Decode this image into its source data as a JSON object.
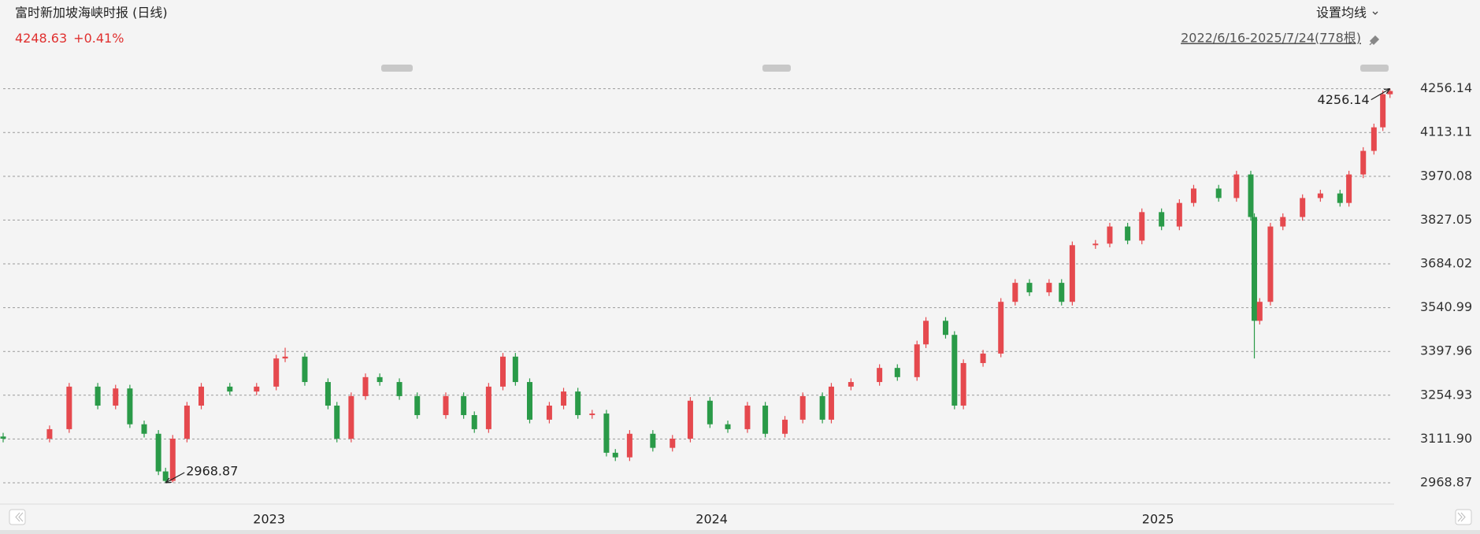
{
  "header": {
    "title": "富时新加坡海峡时报 (日线)",
    "last": 4248.63,
    "change": {
      "value": 0.41,
      "label": "+0.41%"
    },
    "ma_button": "设置均线",
    "range": "2022/6/16-2025/7/24(778根)"
  },
  "chart_data": {
    "type": "candlestick",
    "x": [
      0,
      26,
      37,
      53,
      63,
      71,
      79,
      87,
      91,
      95,
      103,
      111,
      127,
      142,
      153,
      158,
      169,
      182,
      187,
      195,
      203,
      211,
      222,
      232,
      248,
      258,
      264,
      272,
      280,
      287,
      295,
      306,
      314,
      322,
      330,
      338,
      343,
      351,
      364,
      375,
      385,
      396,
      406,
      417,
      427,
      438,
      448,
      459,
      464,
      475,
      491,
      501,
      512,
      517,
      528,
      533,
      538,
      549,
      559,
      567,
      575,
      586,
      593,
      599,
      612,
      620,
      630,
      638,
      649,
      659,
      667,
      681,
      691,
      699,
      701,
      704,
      710,
      717,
      728,
      738,
      749,
      754,
      762,
      768,
      773,
      777
    ],
    "open": [
      3120,
      3113,
      3144,
      3283,
      3221,
      3277,
      3160,
      3129,
      3006,
      2975,
      3113,
      3221,
      3283,
      3267,
      3283,
      3375,
      3381,
      3298,
      3221,
      3113,
      3252,
      3314,
      3298,
      3252,
      3190,
      3252,
      3190,
      3144,
      3283,
      3381,
      3298,
      3175,
      3221,
      3267,
      3190,
      3195,
      3067,
      3052,
      3129,
      3083,
      3113,
      3237,
      3160,
      3144,
      3221,
      3129,
      3175,
      3252,
      3175,
      3283,
      3298,
      3344,
      3314,
      3421,
      3498,
      3452,
      3221,
      3360,
      3391,
      3560,
      3622,
      3591,
      3622,
      3560,
      3745,
      3750,
      3806,
      3760,
      3853,
      3806,
      3883,
      3930,
      3899,
      3976,
      3837,
      3498,
      3560,
      3806,
      3837,
      3899,
      3914,
      3883,
      3976,
      4053,
      4130,
      4238
    ],
    "high": [
      3132,
      3156,
      3295,
      3295,
      3289,
      3289,
      3172,
      3141,
      3018,
      3125,
      3233,
      3295,
      3295,
      3295,
      3387,
      3410,
      3393,
      3310,
      3233,
      3264,
      3326,
      3326,
      3310,
      3264,
      3264,
      3264,
      3202,
      3295,
      3393,
      3393,
      3310,
      3233,
      3279,
      3279,
      3207,
      3207,
      3079,
      3141,
      3141,
      3125,
      3249,
      3249,
      3172,
      3233,
      3233,
      3187,
      3264,
      3264,
      3295,
      3310,
      3356,
      3356,
      3433,
      3510,
      3510,
      3464,
      3372,
      3403,
      3572,
      3634,
      3634,
      3634,
      3634,
      3757,
      3762,
      3818,
      3818,
      3865,
      3865,
      3895,
      3942,
      3942,
      3988,
      3988,
      3849,
      3572,
      3818,
      3849,
      3911,
      3926,
      3926,
      3988,
      4065,
      4142,
      4250,
      4256.14
    ],
    "low": [
      3101,
      3101,
      3132,
      3209,
      3209,
      3148,
      3117,
      2994,
      2968.87,
      2970,
      3101,
      3209,
      3255,
      3255,
      3271,
      3363,
      3286,
      3209,
      3101,
      3101,
      3240,
      3286,
      3240,
      3178,
      3178,
      3178,
      3132,
      3132,
      3271,
      3286,
      3163,
      3163,
      3209,
      3178,
      3178,
      3055,
      3040,
      3040,
      3071,
      3071,
      3101,
      3148,
      3132,
      3132,
      3117,
      3117,
      3163,
      3163,
      3163,
      3271,
      3286,
      3302,
      3302,
      3409,
      3440,
      3209,
      3209,
      3348,
      3379,
      3548,
      3579,
      3579,
      3548,
      3548,
      3733,
      3738,
      3748,
      3748,
      3794,
      3794,
      3871,
      3887,
      3887,
      3825,
      3375,
      3486,
      3548,
      3794,
      3825,
      3887,
      3871,
      3871,
      3964,
      4041,
      4118,
      4226
    ],
    "close": [
      3113,
      3144,
      3283,
      3221,
      3277,
      3160,
      3129,
      3006,
      2975,
      3113,
      3221,
      3283,
      3267,
      3283,
      3375,
      3381,
      3298,
      3221,
      3113,
      3252,
      3314,
      3298,
      3252,
      3190,
      3252,
      3190,
      3144,
      3283,
      3381,
      3298,
      3175,
      3221,
      3267,
      3190,
      3195,
      3067,
      3052,
      3129,
      3083,
      3113,
      3237,
      3160,
      3144,
      3221,
      3129,
      3175,
      3252,
      3175,
      3283,
      3298,
      3344,
      3314,
      3421,
      3498,
      3452,
      3221,
      3360,
      3391,
      3560,
      3622,
      3591,
      3622,
      3560,
      3745,
      3750,
      3806,
      3760,
      3853,
      3806,
      3883,
      3930,
      3899,
      3976,
      3837,
      3498,
      3560,
      3806,
      3837,
      3899,
      3914,
      3883,
      3976,
      4053,
      4130,
      4238,
      4248.63
    ],
    "up_color": "#e5494e",
    "down_color": "#2a9a48",
    "xlim": [
      0,
      778
    ],
    "xticks": [
      {
        "value": 149,
        "label": "2023"
      },
      {
        "value": 397,
        "label": "2024"
      },
      {
        "value": 647,
        "label": "2025"
      }
    ],
    "ylim": [
      2904,
      4355
    ],
    "yticks": [
      2968.87,
      {
        "value": 3111.9,
        "label": "3111.90"
      },
      3254.93,
      3397.96,
      3540.99,
      3684.02,
      3827.05,
      3970.08,
      4113.11,
      4256.14
    ],
    "grid": true,
    "annotations": [
      {
        "label": "2968.87",
        "value": 2968.87,
        "x": 91
      },
      {
        "label": "4256.14",
        "value": 4256.14,
        "x": 777
      }
    ]
  }
}
